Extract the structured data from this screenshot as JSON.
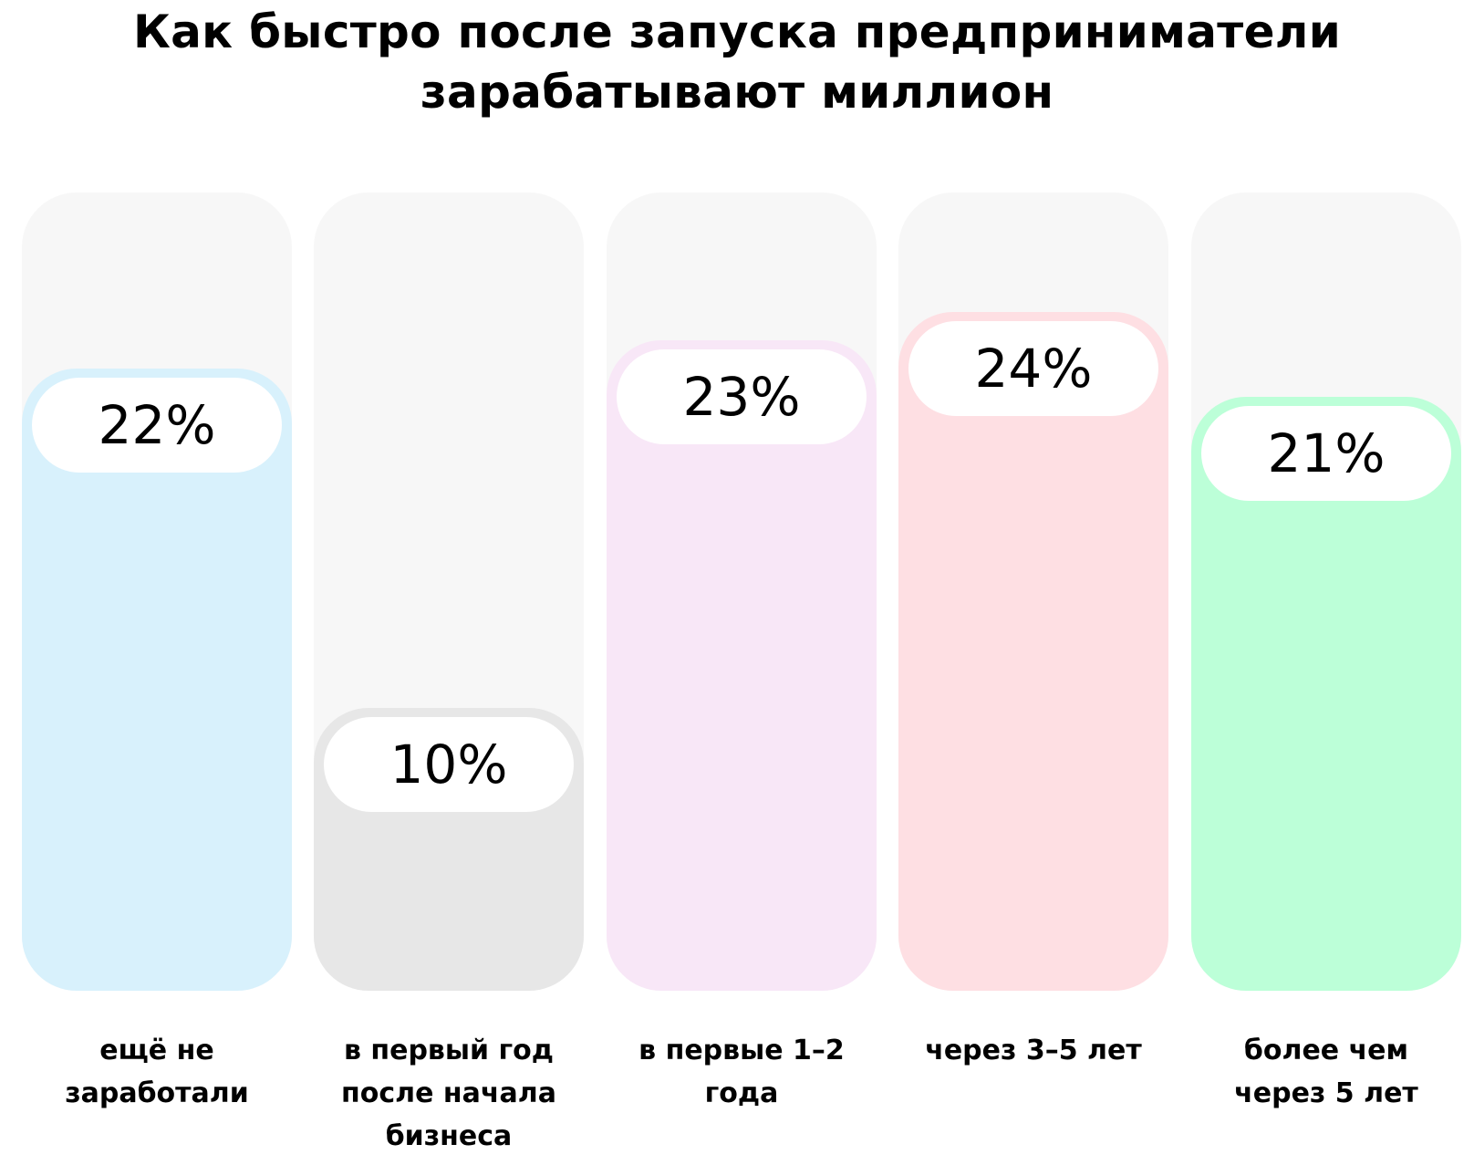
{
  "title": {
    "line1": "Как быстро после запуска предприниматели",
    "line2": "зарабатывают миллион"
  },
  "chart_data": {
    "type": "bar",
    "title": "Как быстро после запуска предприниматели зарабатывают миллион",
    "categories": [
      "ещё не заработали",
      "в первый год после начала бизнеса",
      "в первые 1–2 года",
      "через 3–5 лет",
      "более чем через 5 лет"
    ],
    "category_labels": [
      "ещё не\nзаработали",
      "в первый год\nпосле начала\nбизнеса",
      "в первые 1–2\nгода",
      "через 3–5 лет",
      "более чем\nчерез 5 лет"
    ],
    "values": [
      22,
      10,
      23,
      24,
      21
    ],
    "value_labels": [
      "22%",
      "10%",
      "23%",
      "24%",
      "21%"
    ],
    "unit": "%",
    "colors": [
      "#d8f1fc",
      "#e7e7e7",
      "#f8e7f7",
      "#fedfe3",
      "#bcffd8"
    ],
    "track_color": "#f7f7f7",
    "pill_color": "#ffffff",
    "xlabel": "",
    "ylabel": "",
    "grid": false,
    "legend": "none"
  }
}
